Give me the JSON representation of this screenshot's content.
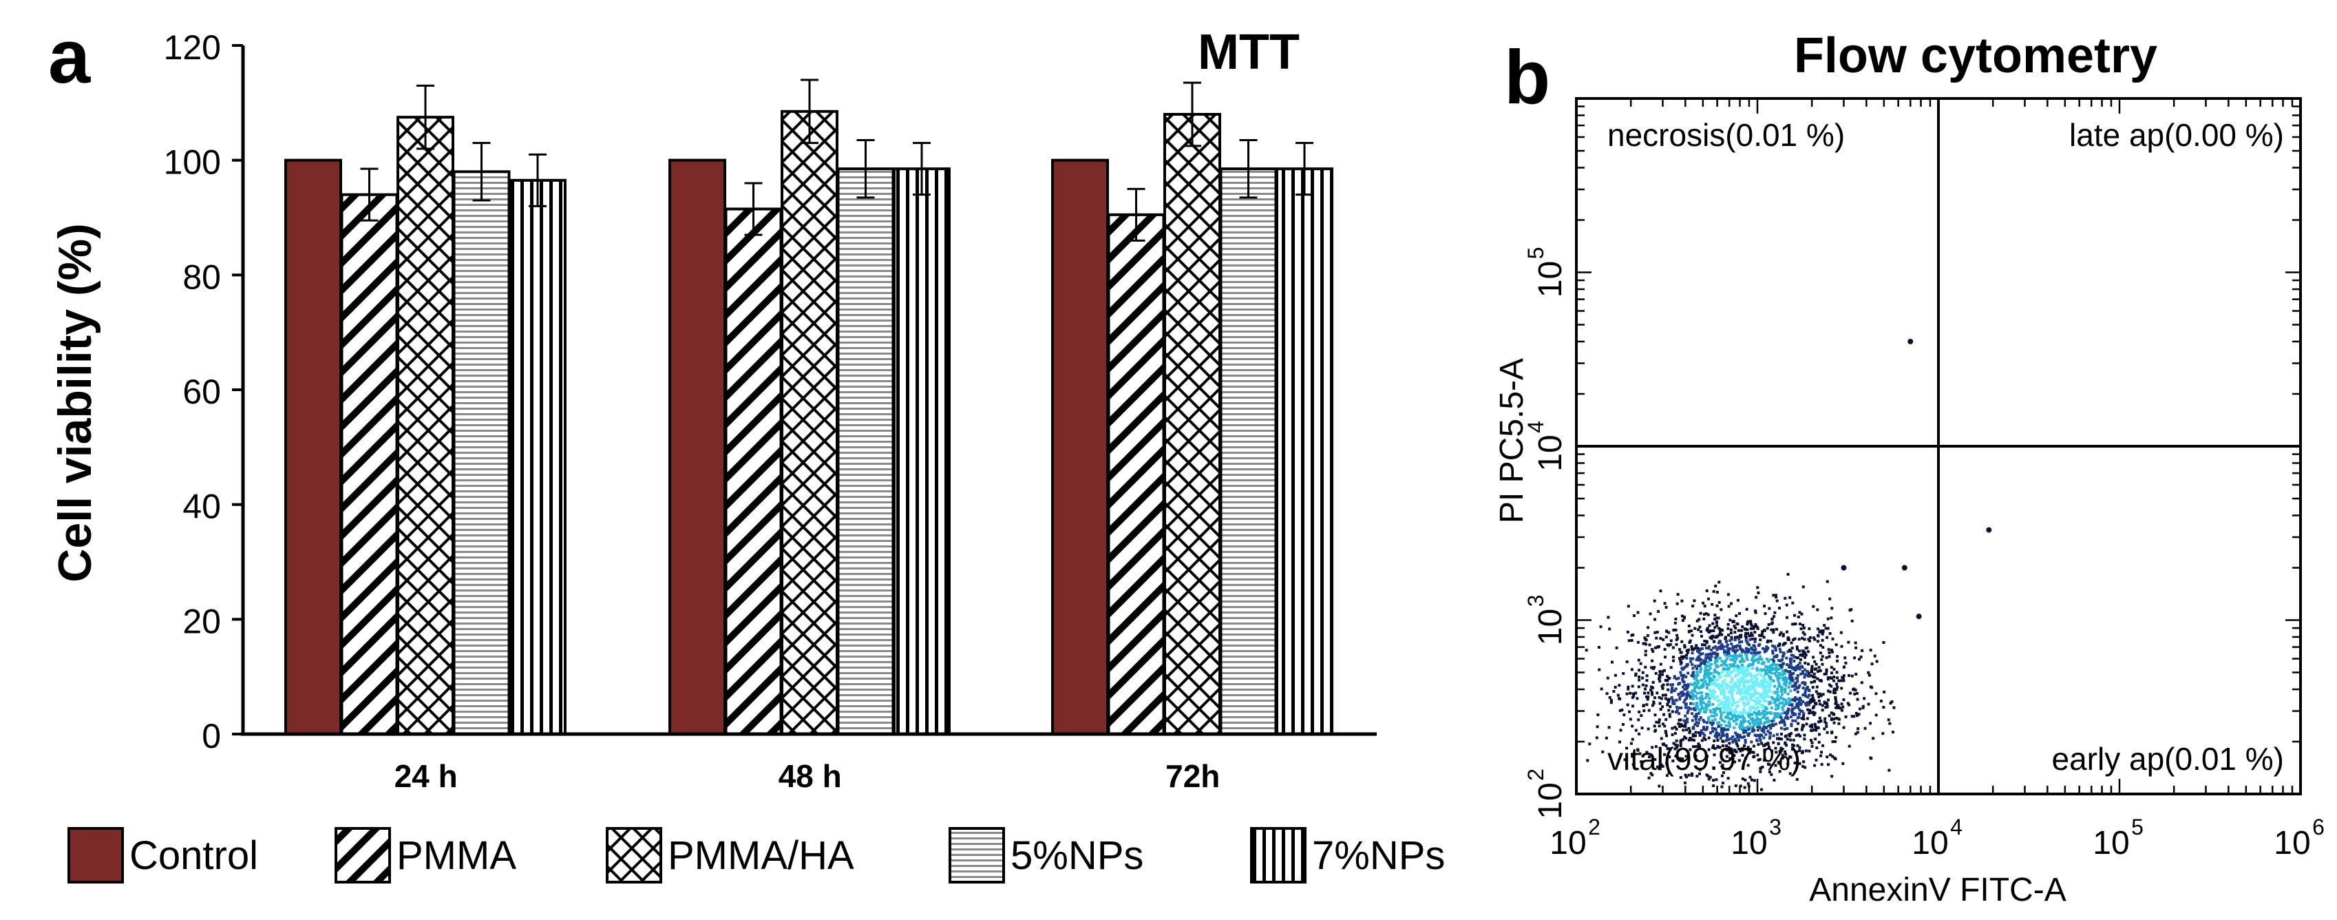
{
  "panel_a": {
    "label": "a",
    "chart_data": {
      "type": "bar",
      "title": "MTT",
      "ylabel": "Cell viability (%)",
      "xlabel": "",
      "categories": [
        "24 h",
        "48 h",
        "72h"
      ],
      "ylim": [
        0,
        120
      ],
      "yticks": [
        "0",
        "20",
        "40",
        "60",
        "80",
        "100",
        "120"
      ],
      "series": [
        {
          "name": "Control",
          "values": [
            100,
            100,
            100
          ],
          "errors": [
            0,
            0,
            0
          ],
          "pattern": "solid",
          "color": "#7b2a27"
        },
        {
          "name": "PMMA",
          "values": [
            94,
            91.5,
            90.5
          ],
          "errors": [
            4.5,
            4.5,
            4.5
          ],
          "pattern": "diagonal",
          "color": "#000000"
        },
        {
          "name": "PMMA/HA",
          "values": [
            107.5,
            108.5,
            108
          ],
          "errors": [
            5.5,
            5.5,
            5.5
          ],
          "pattern": "crosshatch",
          "color": "#000000"
        },
        {
          "name": "5%NPs",
          "values": [
            98,
            98.5,
            98.5
          ],
          "errors": [
            5,
            5,
            5
          ],
          "pattern": "horizontal",
          "color": "#888888"
        },
        {
          "name": "7%NPs",
          "values": [
            96.5,
            98.5,
            98.5
          ],
          "errors": [
            4.5,
            4.5,
            4.5
          ],
          "pattern": "vertical",
          "color": "#000000"
        }
      ],
      "legend": "bottom"
    }
  },
  "panel_b": {
    "label": "b",
    "chart_data": {
      "type": "scatter",
      "title": "Flow cytometry",
      "xlabel": "AnnexinV FITC-A",
      "ylabel": "PI PC5.5-A",
      "xscale": "log",
      "yscale": "log",
      "xlim": [
        100,
        1000000
      ],
      "ylim": [
        100,
        1000000
      ],
      "xticks": [
        {
          "base": "10",
          "exp": "2"
        },
        {
          "base": "10",
          "exp": "3"
        },
        {
          "base": "10",
          "exp": "4"
        },
        {
          "base": "10",
          "exp": "5"
        },
        {
          "base": "10",
          "exp": "6"
        }
      ],
      "yticks": [
        {
          "base": "10",
          "exp": "2"
        },
        {
          "base": "10",
          "exp": "3"
        },
        {
          "base": "10",
          "exp": "4"
        },
        {
          "base": "10",
          "exp": "5"
        }
      ],
      "gate_x": 10000,
      "gate_y": 10000,
      "quadrants": {
        "upper_left": "necrosis(0.01 %)",
        "upper_right": "late ap(0.00 %)",
        "lower_left": "vital(99.97 %)",
        "lower_right": "early ap(0.01 %)"
      },
      "population": {
        "center": [
          800,
          400
        ],
        "colors": [
          "#0b1030",
          "#1a3a8a",
          "#22b5d6",
          "#6ff0ff"
        ]
      },
      "outliers": [
        [
          7000,
          40000
        ],
        [
          19000,
          3300
        ],
        [
          6500,
          2000
        ],
        [
          3000,
          2000
        ],
        [
          7800,
          1050
        ]
      ]
    }
  }
}
